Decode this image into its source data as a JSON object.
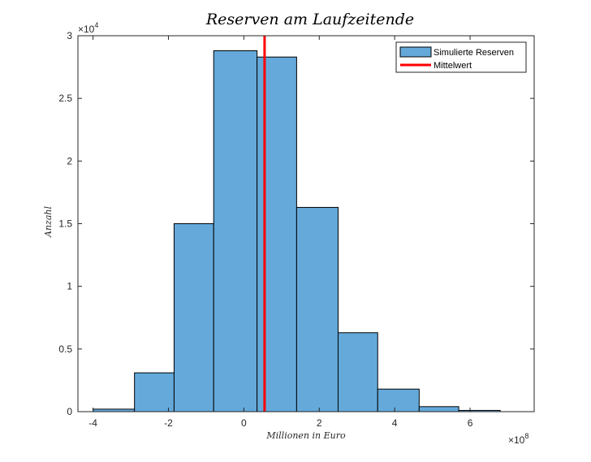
{
  "chart_data": {
    "type": "bar",
    "title": "Reserven am Laufzeitende",
    "xlabel": "Millionen in Euro",
    "ylabel": "Anzahl",
    "x_exponent": "8",
    "y_exponent": "4",
    "exp_prefix": "×10",
    "xlim": [
      -4.4,
      7.7
    ],
    "ylim": [
      0,
      3
    ],
    "x_ticks": [
      -4,
      -2,
      0,
      2,
      4,
      6
    ],
    "x_tick_labels": [
      "-4",
      "-2",
      "0",
      "2",
      "4",
      "6"
    ],
    "y_ticks": [
      0,
      0.5,
      1,
      1.5,
      2,
      2.5,
      3
    ],
    "y_tick_labels": [
      "0",
      "0.5",
      "1",
      "1.5",
      "2",
      "2.5",
      "3"
    ],
    "bin_edges": [
      -4.0,
      -2.9,
      -1.85,
      -0.8,
      0.35,
      1.4,
      2.5,
      3.55,
      4.65,
      5.7,
      6.8
    ],
    "values": [
      0.02,
      0.31,
      1.5,
      2.88,
      2.83,
      1.63,
      0.63,
      0.18,
      0.04,
      0.01
    ],
    "mean": 0.55,
    "grid": false,
    "legend_position": "top-right",
    "series": [
      {
        "name": "Simulierte Reserven",
        "color": "#64A9DA"
      },
      {
        "name": "Mittelwert",
        "color": "#FF0000"
      }
    ]
  }
}
